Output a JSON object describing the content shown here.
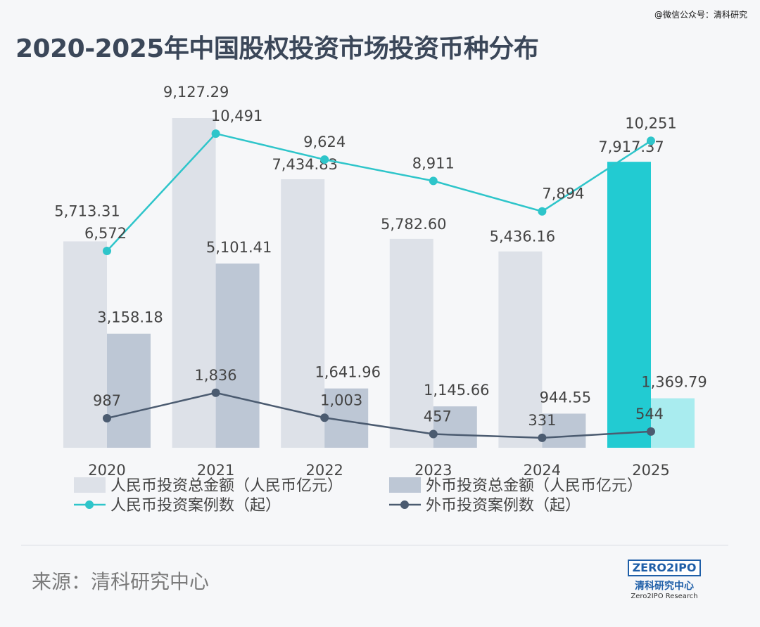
{
  "watermark": "@微信公众号：清科研究",
  "title": "2020-2025年中国股权投资市场投资币种分布",
  "source": "来源：清科研究中心",
  "logo": {
    "mark": "ZERO2IPO",
    "cn": "清科研究中心",
    "en": "Zero2IPO Research"
  },
  "colors": {
    "rmb_bar": "#dde1e8",
    "fx_bar": "#bdc7d5",
    "rmb_bar_highlight": "#22cbd2",
    "fx_bar_highlight": "#a9ecef",
    "rmb_line": "#2ec5ca",
    "fx_line": "#4b5b70"
  },
  "chart_data": {
    "type": "bar+line",
    "categories": [
      "2020",
      "2021",
      "2022",
      "2023",
      "2024",
      "2025"
    ],
    "highlight_category": "2025",
    "series": [
      {
        "name": "人民币投资总金额（人民币亿元）",
        "type": "bar",
        "values": [
          5713.31,
          9127.29,
          7434.83,
          5782.6,
          5436.16,
          7917.37
        ],
        "labels": [
          "5,713.31",
          "9,127.29",
          "7,434.83",
          "5,782.60",
          "5,436.16",
          "7,917.37"
        ]
      },
      {
        "name": "外币投资总金额（人民币亿元）",
        "type": "bar",
        "values": [
          3158.18,
          5101.41,
          1641.96,
          1145.66,
          944.55,
          1369.79
        ],
        "labels": [
          "3,158.18",
          "5,101.41",
          "1,641.96",
          "1,145.66",
          "944.55",
          "1,369.79"
        ]
      },
      {
        "name": "人民币投资案例数（起）",
        "type": "line",
        "values": [
          6572,
          10491,
          9624,
          8911,
          7894,
          10251
        ],
        "labels": [
          "6,572",
          "10,491",
          "9,624",
          "8,911",
          "7,894",
          "10,251"
        ]
      },
      {
        "name": "外币投资案例数（起）",
        "type": "line",
        "values": [
          987,
          1836,
          1003,
          457,
          331,
          544
        ],
        "labels": [
          "987",
          "1,836",
          "1,003",
          "457",
          "331",
          "544"
        ]
      }
    ],
    "legend": "bottom",
    "grid": false
  }
}
